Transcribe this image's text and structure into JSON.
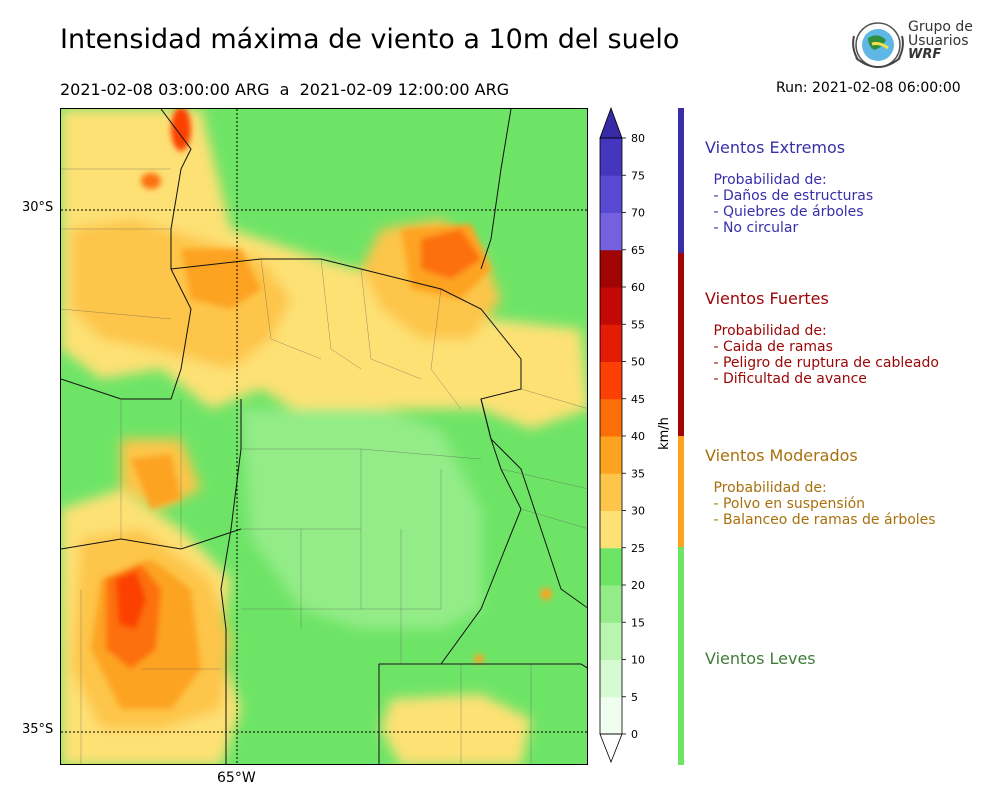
{
  "title": "Intensidad máxima de viento a 10m del suelo",
  "period": "2021-02-08 03:00:00 ARG  a  2021-02-09 12:00:00 ARG",
  "run": "Run: 2021-02-08 06:00:00",
  "logo": {
    "line1": "Grupo de",
    "line2": "Usuarios",
    "line3": "WRF"
  },
  "map": {
    "lat_labels": [
      "30°S",
      "35°S"
    ],
    "lon_labels": [
      "65°W"
    ]
  },
  "colorbar": {
    "unit": "km/h",
    "ticks": [
      "0",
      "5",
      "10",
      "15",
      "20",
      "25",
      "30",
      "35",
      "40",
      "45",
      "50",
      "55",
      "60",
      "65",
      "70",
      "75",
      "80"
    ],
    "colors": [
      "#effeef",
      "#d6fbd3",
      "#b9f5b0",
      "#93ec87",
      "#6ee467",
      "#fde174",
      "#fdc54a",
      "#fda320",
      "#fc6f08",
      "#fb3f05",
      "#e21c05",
      "#c20905",
      "#a00404",
      "#7560e0",
      "#5948d1",
      "#4536bf",
      "#382aa6"
    ]
  },
  "categories": [
    {
      "title": "Vientos Extremos",
      "color": "#3a2ea8",
      "desc": " Probabilidad de:\n - Daños de estructuras\n - Quiebres de árboles\n - No circular"
    },
    {
      "title": "Vientos Fuertes",
      "color": "#9b0505",
      "desc": " Probabilidad de:\n - Caida de ramas\n - Peligro de ruptura de cableado\n - Dificultad de avance"
    },
    {
      "title": "Vientos Moderados",
      "color": "#a8700c",
      "desc": " Probabilidad de:\n - Polvo en suspensión\n - Balanceo de ramas de árboles"
    },
    {
      "title": "Vientos Leves",
      "color": "#3f7e38",
      "desc": ""
    }
  ]
}
